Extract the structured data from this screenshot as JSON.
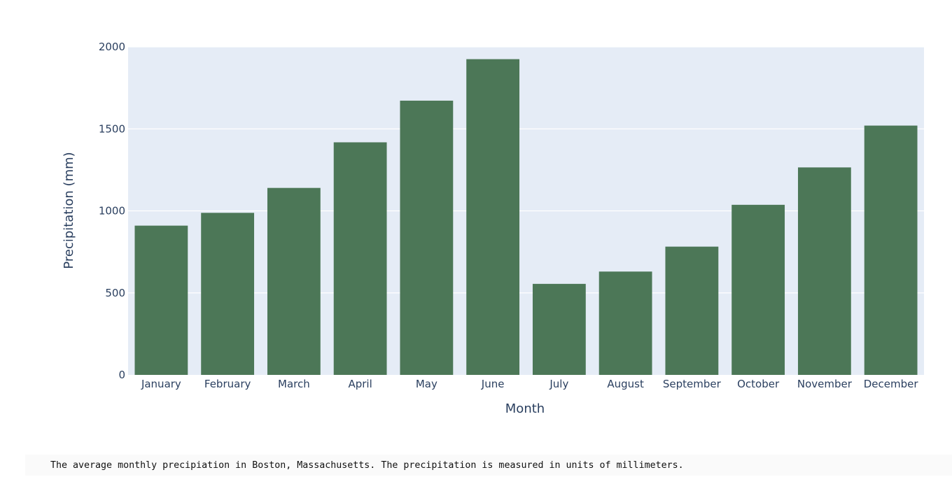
{
  "chart_data": {
    "type": "bar",
    "categories": [
      "January",
      "February",
      "March",
      "April",
      "May",
      "June",
      "July",
      "August",
      "September",
      "October",
      "November",
      "December"
    ],
    "values": [
      910,
      988,
      1140,
      1418,
      1672,
      1925,
      555,
      630,
      782,
      1037,
      1265,
      1520
    ],
    "title": "",
    "xlabel": "Month",
    "ylabel": "Precipitation (mm)",
    "ylim": [
      0,
      2000
    ],
    "yticks": [
      0,
      500,
      1000,
      1500,
      2000
    ],
    "grid": true,
    "bar_color": "#4c7757",
    "plot_background": "#e5ecf6",
    "gridline_color": "#ffffff",
    "text_color": "#2a3f5f"
  },
  "caption": "The average monthly precipiation in Boston, Massachusetts. The precipitation is measured in units of millimeters."
}
